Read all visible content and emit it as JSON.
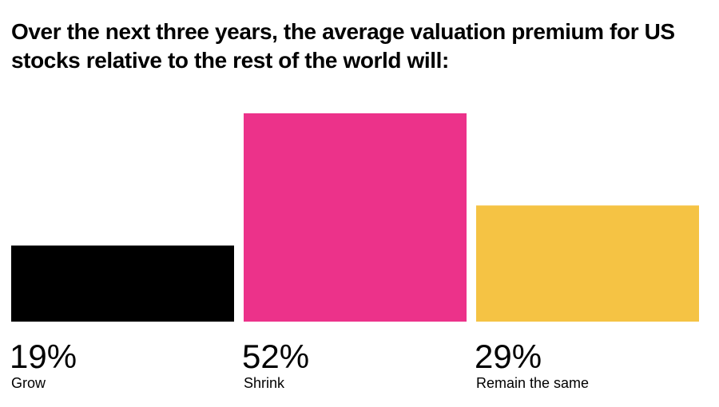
{
  "chart_data": {
    "type": "bar",
    "title": "Over the next three years, the average valuation premium for US stocks relative to the rest of the world will:",
    "categories": [
      "Grow",
      "Shrink",
      "Remain the same"
    ],
    "values": [
      19,
      52,
      29
    ],
    "value_labels": [
      "19%",
      "52%",
      "29%"
    ],
    "colors": [
      "#000000",
      "#ec328a",
      "#f5c344"
    ],
    "ylim": [
      0,
      52
    ],
    "grid": false,
    "legend": "none"
  }
}
